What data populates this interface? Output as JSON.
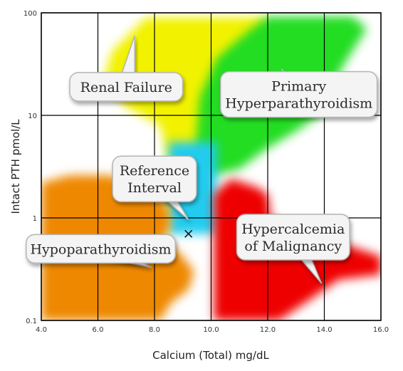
{
  "chart_data": {
    "type": "scatter",
    "xlabel": "Calcium (Total) mg/dL",
    "ylabel": "Intact PTH   pmol/L",
    "xlim": [
      4.0,
      16.0
    ],
    "ylim": [
      0.1,
      100
    ],
    "yscale": "log",
    "grid": true,
    "x_ticks": [
      "4.0",
      "6.0",
      "8.0",
      "10.0",
      "12.0",
      "14.0",
      "16.0"
    ],
    "y_ticks": [
      "0.1",
      "1",
      "10",
      "100"
    ],
    "regions": [
      {
        "label": [
          "Renal Failure"
        ],
        "color": "#f2f200",
        "polygon": [
          [
            8.1,
            0.2
          ],
          [
            8.5,
            1.0
          ],
          [
            8.8,
            1.6
          ],
          [
            9.4,
            4.5
          ],
          [
            9.6,
            4.3
          ],
          [
            10.8,
            8.5
          ],
          [
            11.6,
            16
          ],
          [
            12.0,
            25
          ],
          [
            12.0,
            90
          ],
          [
            7.7,
            90
          ],
          [
            6.5,
            42
          ],
          [
            6.2,
            22
          ],
          [
            7.0,
            12
          ],
          [
            8.2,
            8
          ],
          [
            8.5,
            3.5
          ]
        ],
        "bubble_anchor": [
          7.0,
          19
        ],
        "tail_tip": [
          7.3,
          60
        ]
      },
      {
        "label": [
          "Primary",
          "Hyperparathyroidism"
        ],
        "color": "#22dd22",
        "polygon": [
          [
            9.4,
            3.2
          ],
          [
            10.0,
            2.6
          ],
          [
            11.0,
            3.0
          ],
          [
            12.0,
            4.8
          ],
          [
            13.0,
            7.0
          ],
          [
            13.8,
            10
          ],
          [
            14.2,
            18
          ],
          [
            14.8,
            35
          ],
          [
            15.5,
            70
          ],
          [
            15.0,
            92
          ],
          [
            12.0,
            92
          ],
          [
            11.3,
            66
          ],
          [
            10.2,
            36
          ],
          [
            9.6,
            15
          ]
        ],
        "bubble_anchor": [
          13.1,
          16
        ],
        "tail_tip": [
          12.5,
          28
        ]
      },
      {
        "label": [
          "Reference",
          "Interval"
        ],
        "color": "#22ccee",
        "polygon": [
          [
            8.5,
            0.7
          ],
          [
            10.2,
            0.7
          ],
          [
            10.2,
            5.5
          ],
          [
            8.5,
            5.5
          ]
        ],
        "bubble_anchor": [
          8.0,
          2.4
        ],
        "tail_tip": [
          9.2,
          0.96
        ]
      },
      {
        "label": [
          "Hypoparathyroidism"
        ],
        "color": "#ee8800",
        "polygon": [
          [
            4.0,
            0.1
          ],
          [
            4.0,
            2.2
          ],
          [
            5.0,
            2.6
          ],
          [
            6.4,
            2.6
          ],
          [
            7.6,
            2.0
          ],
          [
            8.4,
            1.4
          ],
          [
            8.6,
            0.9
          ],
          [
            8.3,
            0.6
          ],
          [
            8.9,
            0.45
          ],
          [
            9.4,
            0.3
          ],
          [
            9.2,
            0.2
          ],
          [
            8.6,
            0.15
          ],
          [
            8.2,
            0.1
          ]
        ],
        "bubble_anchor": [
          6.1,
          0.5
        ],
        "tail_tip": [
          7.9,
          0.33
        ]
      },
      {
        "label": [
          "Hypercalcemia",
          "of Malignancy"
        ],
        "color": "#ee0000",
        "polygon": [
          [
            10.1,
            0.1
          ],
          [
            10.1,
            1.7
          ],
          [
            10.7,
            2.4
          ],
          [
            11.6,
            2.0
          ],
          [
            12.0,
            1.7
          ],
          [
            12.1,
            1.0
          ],
          [
            12.8,
            0.85
          ],
          [
            13.4,
            0.75
          ],
          [
            14.0,
            0.62
          ],
          [
            15.0,
            0.52
          ],
          [
            16.0,
            0.42
          ],
          [
            16.0,
            0.28
          ],
          [
            14.5,
            0.25
          ],
          [
            13.5,
            0.16
          ],
          [
            12.4,
            0.1
          ]
        ],
        "bubble_anchor": [
          12.9,
          0.65
        ],
        "tail_tip": [
          13.9,
          0.23
        ]
      }
    ],
    "marker": {
      "x": 9.2,
      "y": 0.7,
      "symbol": "x"
    }
  },
  "colors": {
    "grid": "#000000",
    "bubble_fill": "#f4f4f4",
    "bubble_stroke": "#b5b5b5",
    "marker": "#111111"
  }
}
